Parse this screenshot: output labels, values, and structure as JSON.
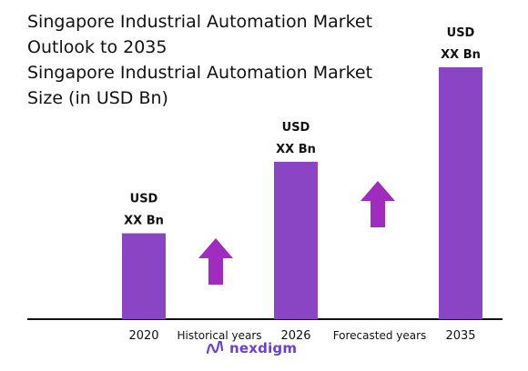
{
  "header": {
    "title_line1": "Singapore Industrial Automation Market",
    "title_line2": "Outlook to 2035",
    "subtitle_line1": "Singapore Industrial Automation Market",
    "subtitle_line2": "Size (in USD Bn)"
  },
  "colors": {
    "bar": "#8a45c4",
    "arrow": "#a02bbf",
    "axis": "#111111",
    "brand": "#6a3fd6"
  },
  "chart_data": {
    "type": "bar",
    "categories": [
      "2020",
      "2026",
      "2035"
    ],
    "values": [
      3,
      5.5,
      8.8
    ],
    "ylim": [
      0,
      9
    ],
    "values_note_hidden": false,
    "data_labels": [
      {
        "line1": "USD",
        "line2": "XX Bn"
      },
      {
        "line1": "USD",
        "line2": "XX Bn"
      },
      {
        "line1": "USD",
        "line2": "XX Bn"
      }
    ],
    "phase_labels": [
      "Historical years",
      "Forecasted years"
    ],
    "grid": false,
    "legend": "none"
  },
  "brand": {
    "name": "nexdigm",
    "icon": "nexdigm-logo-icon"
  }
}
